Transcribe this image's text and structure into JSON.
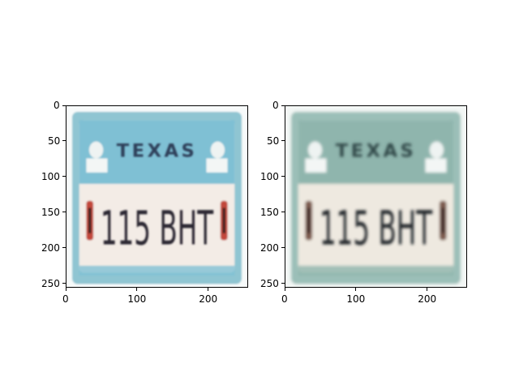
{
  "figure": {
    "panels": [
      {
        "name": "panel-left",
        "image": {
          "kind": "license-plate-photo",
          "state_text": "TEXAS",
          "plate_text": "115 BHT",
          "tone": "vivid",
          "colors": {
            "border": "#8fc5d2",
            "top_band": "#7fc0d4",
            "state_text": "#2f3f5a",
            "plate_bg": "#f3ece6",
            "plate_text": "#2a2630",
            "side_red": "#c2463a"
          }
        },
        "x_ticks": [
          "0",
          "100",
          "200"
        ],
        "y_ticks": [
          "0",
          "50",
          "100",
          "150",
          "200",
          "250"
        ]
      },
      {
        "name": "panel-right",
        "image": {
          "kind": "license-plate-photo",
          "state_text": "TEXAS",
          "plate_text": "115 BHT",
          "tone": "muted",
          "colors": {
            "border": "#9bbfb8",
            "top_band": "#8fb5ad",
            "state_text": "#304848",
            "plate_bg": "#eee9e0",
            "plate_text": "#22272a",
            "side_red": "#7d5a4e"
          }
        },
        "x_ticks": [
          "0",
          "100",
          "200"
        ],
        "y_ticks": [
          "0",
          "50",
          "100",
          "150",
          "200",
          "250"
        ]
      }
    ]
  }
}
